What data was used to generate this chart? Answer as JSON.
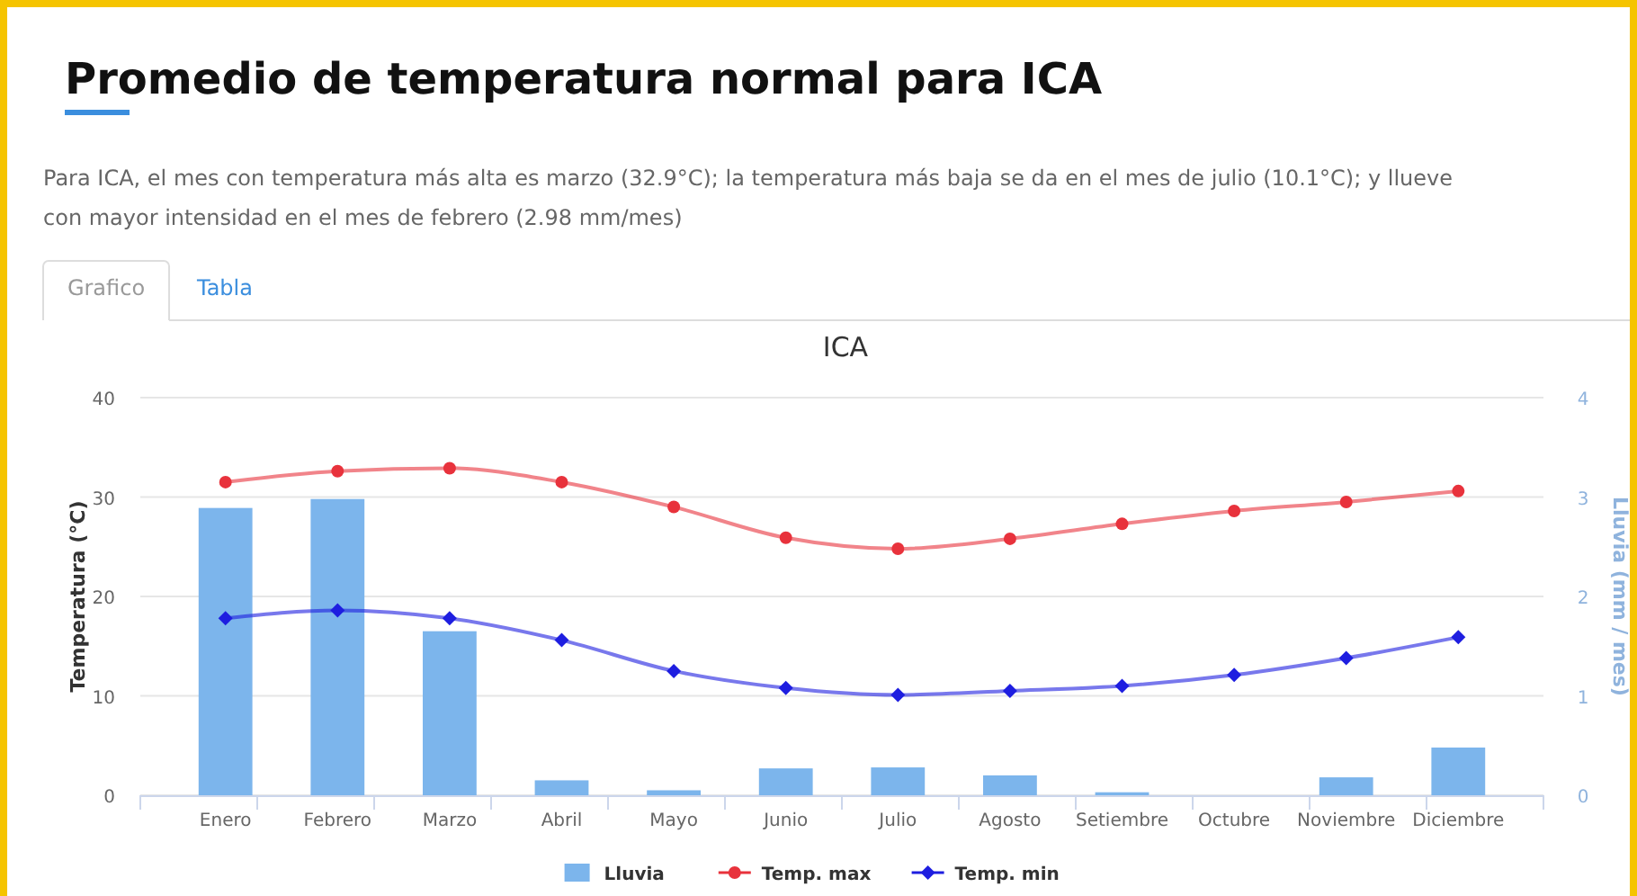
{
  "chart_data": {
    "type": "bar",
    "title": "Promedio de temperatura normal para ICA",
    "subtitle": "Para ICA, el mes con temperatura más alta es marzo (32.9°C); la temperatura más baja se da en el mes de julio (10.1°C); y llueve con mayor intensidad en el mes de febrero (2.98 mm/mes)",
    "annotations": [
      "ICA",
      "Grafico",
      "Tabla"
    ],
    "ylabel": "Temperatura (°C)",
    "y2label": "Lluvia (mm / mes)",
    "categories": [
      "Enero",
      "Febrero",
      "Marzo",
      "Abril",
      "Mayo",
      "Junio",
      "Julio",
      "Agosto",
      "Setiembre",
      "Octubre",
      "Noviembre",
      "Diciembre"
    ],
    "series": [
      {
        "name": "Lluvia",
        "axis": "y2",
        "color": "#7cb5ec",
        "values": [
          2.89,
          2.98,
          1.65,
          0.15,
          0.05,
          0.27,
          0.28,
          0.2,
          0.03,
          0,
          0.18,
          0.48
        ]
      },
      {
        "name": "Temp. max",
        "type": "line",
        "color": "#e8323c",
        "marker": "circle",
        "values": [
          31.5,
          32.6,
          32.9,
          31.5,
          29.0,
          25.9,
          24.8,
          25.8,
          27.3,
          28.6,
          29.5,
          30.6
        ]
      },
      {
        "name": "Temp. min",
        "type": "line",
        "color": "#1e1ee0",
        "marker": "diamond",
        "values": [
          17.8,
          18.6,
          17.8,
          15.6,
          12.5,
          10.8,
          10.1,
          10.5,
          11.0,
          12.1,
          13.8,
          15.9
        ]
      }
    ],
    "ylim": [
      0,
      40
    ],
    "yticks": [
      0,
      10,
      20,
      30,
      40
    ],
    "y2lim": [
      0,
      4
    ],
    "y2ticks": [
      0,
      1,
      2,
      3,
      4
    ],
    "grid": "y",
    "legend": "bottom"
  }
}
